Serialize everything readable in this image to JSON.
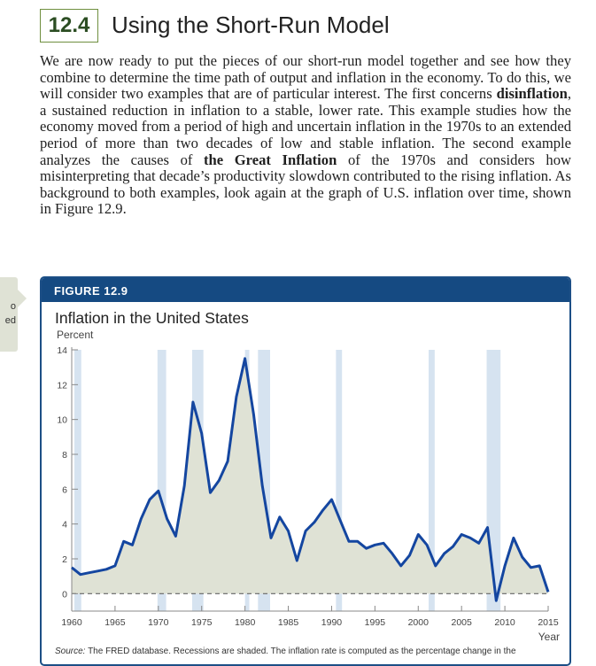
{
  "section": {
    "number": "12.4",
    "title": "Using the Short-Run Model"
  },
  "body": {
    "p1": "We are now ready to put the pieces of our short-run model together and see how they combine to determine the time path of output and inflation in the economy. To do this, we will consider two examples that are of particular interest. The first concerns ",
    "term1": "disinflation",
    "p2": ", a sustained reduction in inflation to a stable, lower rate. This example studies how the economy moved from a period of high and uncertain inflation in the 1970s to an extended period of more than two decades of low and stable inflation. The second example analyzes the causes of ",
    "term2": "the Great Inflation",
    "p3": " of the 1970s and considers how misinterpreting that decade’s productivity slowdown contributed to the rising inflation. As background to both examples, look again at the graph of U.S. inflation over time, shown in Figure 12.9."
  },
  "side_note": {
    "line1": "o",
    "line2": "ed"
  },
  "figure": {
    "label": "FIGURE 12.9",
    "title": "Inflation in the United States",
    "source_label": "Source:",
    "source_text": " The FRED database. Recessions are shaded. The inflation rate is computed as the percentage change in the"
  },
  "chart_data": {
    "type": "area",
    "ylabel": "Percent",
    "xlabel": "Year",
    "xlim": [
      1960,
      2015
    ],
    "ylim": [
      -1,
      14
    ],
    "xticks": [
      1960,
      1965,
      1970,
      1975,
      1980,
      1985,
      1990,
      1995,
      2000,
      2005,
      2010,
      2015
    ],
    "yticks": [
      0,
      2,
      4,
      6,
      8,
      10,
      12,
      14
    ],
    "recessions": [
      [
        1960.3,
        1961.1
      ],
      [
        1969.9,
        1970.9
      ],
      [
        1973.9,
        1975.2
      ],
      [
        1980.0,
        1980.5
      ],
      [
        1981.5,
        1982.9
      ],
      [
        1990.5,
        1991.2
      ],
      [
        2001.2,
        2001.9
      ],
      [
        2007.9,
        2009.5
      ]
    ],
    "reference_line": 0,
    "x": [
      1960,
      1961,
      1962,
      1963,
      1964,
      1965,
      1966,
      1967,
      1968,
      1969,
      1970,
      1971,
      1972,
      1973,
      1974,
      1975,
      1976,
      1977,
      1978,
      1979,
      1980,
      1981,
      1982,
      1983,
      1984,
      1985,
      1986,
      1987,
      1988,
      1989,
      1990,
      1991,
      1992,
      1993,
      1994,
      1995,
      1996,
      1997,
      1998,
      1999,
      2000,
      2001,
      2002,
      2003,
      2004,
      2005,
      2006,
      2007,
      2008,
      2009,
      2010,
      2011,
      2012,
      2013,
      2014,
      2015
    ],
    "values": [
      1.5,
      1.1,
      1.2,
      1.3,
      1.4,
      1.6,
      3.0,
      2.8,
      4.3,
      5.4,
      5.9,
      4.3,
      3.3,
      6.2,
      11.0,
      9.2,
      5.8,
      6.5,
      7.6,
      11.3,
      13.5,
      10.3,
      6.2,
      3.2,
      4.4,
      3.6,
      1.9,
      3.6,
      4.1,
      4.8,
      5.4,
      4.2,
      3.0,
      3.0,
      2.6,
      2.8,
      2.9,
      2.3,
      1.6,
      2.2,
      3.4,
      2.8,
      1.6,
      2.3,
      2.7,
      3.4,
      3.2,
      2.9,
      3.8,
      -0.4,
      1.6,
      3.2,
      2.1,
      1.5,
      1.6,
      0.1
    ],
    "series_color": "#1446a0",
    "fill_color": "#dfe2d5",
    "recession_color": "#d6e3f0"
  }
}
